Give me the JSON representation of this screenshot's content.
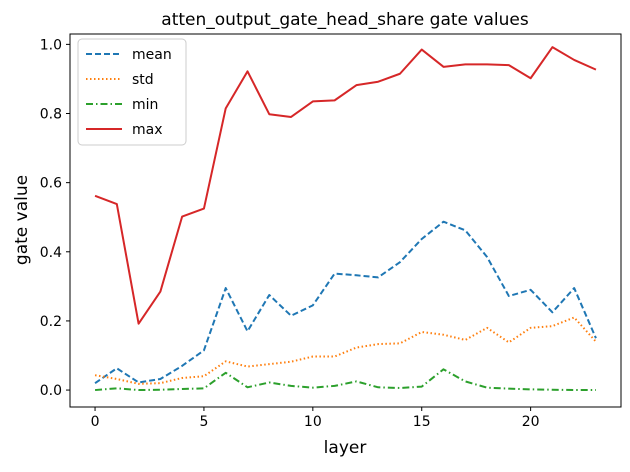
{
  "chart_data": {
    "type": "line",
    "title": "atten_output_gate_head_share gate values",
    "xlabel": "layer",
    "ylabel": "gate value",
    "xlim": [
      -1.15,
      24.15
    ],
    "ylim": [
      -0.049,
      1.03
    ],
    "xticks": [
      0,
      5,
      10,
      15,
      20
    ],
    "xtick_labels": [
      "0",
      "5",
      "10",
      "15",
      "20"
    ],
    "yticks": [
      0.0,
      0.2,
      0.4,
      0.6,
      0.8,
      1.0
    ],
    "ytick_labels": [
      "0.0",
      "0.2",
      "0.4",
      "0.6",
      "0.8",
      "1.0"
    ],
    "grid": false,
    "legend_position": "upper-left",
    "x": [
      0,
      1,
      2,
      3,
      4,
      5,
      6,
      7,
      8,
      9,
      10,
      11,
      12,
      13,
      14,
      15,
      16,
      17,
      18,
      19,
      20,
      21,
      22,
      23
    ],
    "series": [
      {
        "name": "mean",
        "color": "#1f77b4",
        "linestyle": "dashed",
        "values": [
          0.02,
          0.063,
          0.022,
          0.032,
          0.07,
          0.115,
          0.295,
          0.17,
          0.275,
          0.215,
          0.245,
          0.337,
          0.332,
          0.326,
          0.37,
          0.437,
          0.487,
          0.462,
          0.385,
          0.272,
          0.29,
          0.225,
          0.295,
          0.15
        ]
      },
      {
        "name": "std",
        "color": "#ff7f0e",
        "linestyle": "dotted",
        "values": [
          0.043,
          0.032,
          0.018,
          0.02,
          0.035,
          0.04,
          0.083,
          0.068,
          0.075,
          0.082,
          0.097,
          0.097,
          0.123,
          0.133,
          0.135,
          0.168,
          0.16,
          0.145,
          0.18,
          0.138,
          0.18,
          0.185,
          0.21,
          0.14
        ]
      },
      {
        "name": "min",
        "color": "#2ca02c",
        "linestyle": "dashdot",
        "values": [
          0.0,
          0.005,
          0.0,
          0.001,
          0.003,
          0.005,
          0.05,
          0.008,
          0.022,
          0.012,
          0.007,
          0.012,
          0.025,
          0.008,
          0.006,
          0.01,
          0.06,
          0.025,
          0.007,
          0.004,
          0.002,
          0.001,
          0.0,
          0.0
        ]
      },
      {
        "name": "max",
        "color": "#d62728",
        "linestyle": "solid",
        "values": [
          0.562,
          0.538,
          0.192,
          0.285,
          0.502,
          0.525,
          0.815,
          0.922,
          0.798,
          0.79,
          0.835,
          0.838,
          0.882,
          0.892,
          0.915,
          0.985,
          0.935,
          0.942,
          0.942,
          0.94,
          0.902,
          0.992,
          0.955,
          0.927
        ]
      }
    ]
  }
}
